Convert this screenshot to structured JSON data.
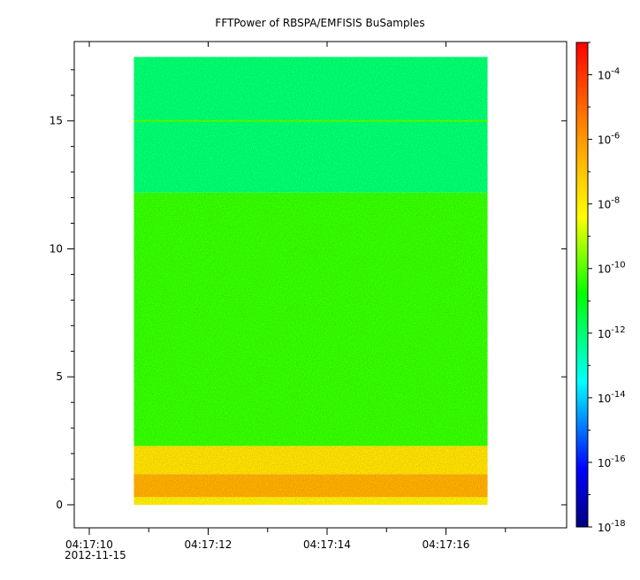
{
  "chart_data": {
    "type": "heatmap",
    "title": "FFTPower of RBSPA/EMFISIS  BuSamples",
    "xlabel": "",
    "ylabel": "",
    "x_ticks": [
      "04:17:10",
      "04:17:12",
      "04:17:14",
      "04:17:16"
    ],
    "x_date_label": "2012-11-15",
    "xlim": [
      "04:17:10",
      "04:17:18"
    ],
    "x_data_range": [
      "04:17:10.75",
      "04:17:16.7"
    ],
    "y_ticks": [
      "0",
      "5",
      "10",
      "15"
    ],
    "ylim": [
      -0.9,
      18.1
    ],
    "y_data_range": [
      0,
      17.5
    ],
    "colorbar": {
      "scale": "log",
      "range": [
        1e-18,
        0.001
      ],
      "colormap": "rainbow",
      "ticks": [
        {
          "base": "10",
          "exp": "-4"
        },
        {
          "base": "10",
          "exp": "-6"
        },
        {
          "base": "10",
          "exp": "-8"
        },
        {
          "base": "10",
          "exp": "-10"
        },
        {
          "base": "10",
          "exp": "-12"
        },
        {
          "base": "10",
          "exp": "-14"
        },
        {
          "base": "10",
          "exp": "-16"
        },
        {
          "base": "10",
          "exp": "-18"
        }
      ],
      "tick_values": [
        0.0001,
        1e-06,
        1e-08,
        1e-10,
        1e-12,
        1e-14,
        1e-16,
        1e-18
      ]
    },
    "bands": [
      {
        "y_from": 0,
        "y_to": 0.3,
        "power": 1e-08
      },
      {
        "y_from": 0.3,
        "y_to": 1.2,
        "power": 3e-07
      },
      {
        "y_from": 1.2,
        "y_to": 2.3,
        "power": 2e-08
      },
      {
        "y_from": 2.3,
        "y_to": 12.2,
        "power": 5e-11
      },
      {
        "y_from": 12.2,
        "y_to": 17.5,
        "power": 1e-12
      }
    ],
    "line_feature": {
      "y": 15,
      "power": 1e-10
    },
    "colors": {
      "background": "#ffffff",
      "axis": "#000000"
    }
  }
}
